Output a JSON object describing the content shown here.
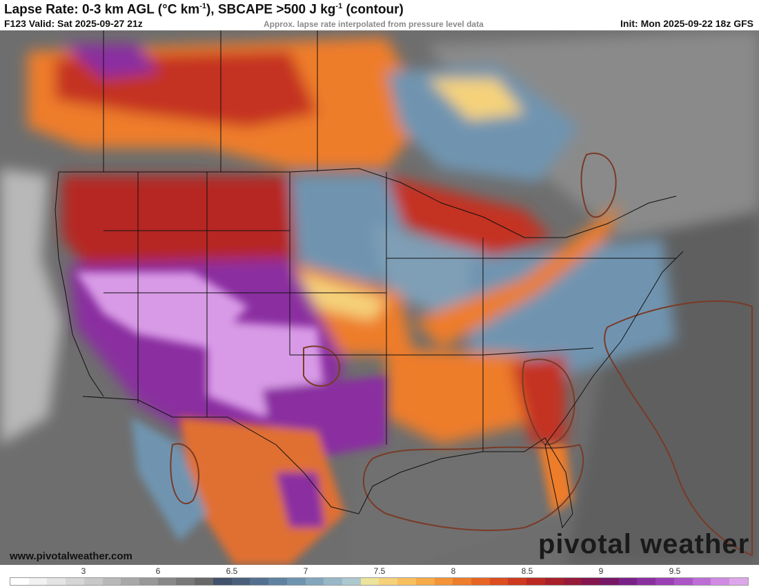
{
  "header": {
    "title_main": "Lapse Rate: 0-3 km AGL (°C km",
    "title_sup1": "-1",
    "title_mid": "), SBCAPE >500 J kg",
    "title_sup2": "-1",
    "title_end": " (contour)",
    "valid": "F123 Valid: Sat 2025-09-27 21z",
    "note": "Approx. lapse rate interpolated from pressure level data",
    "init": "Init: Mon 2025-09-22 18z GFS"
  },
  "footer": {
    "site_url": "www.pivotalweather.com",
    "logo_text": "pivotal weather"
  },
  "colorbar": {
    "labels": [
      {
        "text": "3",
        "value": 3
      },
      {
        "text": "6",
        "value": 6
      },
      {
        "text": "6.5",
        "value": 6.5
      },
      {
        "text": "7",
        "value": 7
      },
      {
        "text": "7.5",
        "value": 7.5
      },
      {
        "text": "8",
        "value": 8
      },
      {
        "text": "8.5",
        "value": 8.5
      },
      {
        "text": "9",
        "value": 9
      },
      {
        "text": "9.5",
        "value": 9.5
      }
    ],
    "colors": [
      "#ffffff",
      "#f2f2f2",
      "#e4e4e4",
      "#d6d6d6",
      "#c8c8c8",
      "#b8b8b8",
      "#a8a8a8",
      "#989898",
      "#888888",
      "#787878",
      "#686868",
      "#42526a",
      "#4a5f7a",
      "#547090",
      "#5f82a1",
      "#6f94b0",
      "#83a6bd",
      "#98b8c8",
      "#adc8cf",
      "#eee39b",
      "#f5d27a",
      "#f8bf5f",
      "#f6aa48",
      "#f39438",
      "#ee7d2c",
      "#e76524",
      "#dc4e20",
      "#cd3a20",
      "#bb2a22",
      "#a8202a",
      "#961a3a",
      "#84164e",
      "#761866",
      "#7a2188",
      "#8a2fa0",
      "#9a40b4",
      "#ab55c6",
      "#bd6ed6",
      "#cf8ae2",
      "#dea6ea"
    ]
  },
  "map_colors": {
    "ocean": "#6e6e6e",
    "land_low": "#8c8c8c",
    "blue": "#6f94b0",
    "yellow": "#f5d27a",
    "orange": "#ee7d2c",
    "red": "#c43222",
    "purple": "#8a2fa0",
    "violet": "#d89ae6",
    "cape_contour": "#7a3a26",
    "borders": "#111111"
  }
}
